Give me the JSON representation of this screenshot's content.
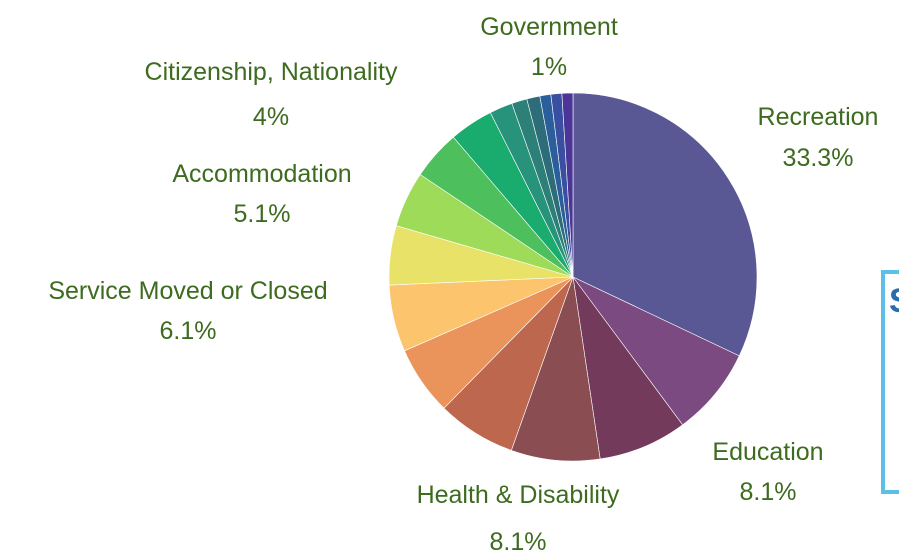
{
  "chart_data": {
    "type": "pie",
    "title": "",
    "slices": [
      {
        "label": "Recreation",
        "value": 33.3,
        "display": "33.3%",
        "color": "#5a5795"
      },
      {
        "label": "Education",
        "value": 8.1,
        "display": "8.1%",
        "color": "#7a4a80"
      },
      {
        "label": "",
        "value": 8.1,
        "display": "",
        "color": "#733a5c"
      },
      {
        "label": "Health & Disability",
        "value": 8.1,
        "display": "8.1%",
        "color": "#8a4d52"
      },
      {
        "label": "",
        "value": 7.2,
        "display": "",
        "color": "#bd674e"
      },
      {
        "label": "",
        "value": 6.3,
        "display": "",
        "color": "#ea945c"
      },
      {
        "label": "Service Moved or Closed",
        "value": 6.1,
        "display": "6.1%",
        "color": "#fbc46d"
      },
      {
        "label": "",
        "value": 5.4,
        "display": "",
        "color": "#e8e368"
      },
      {
        "label": "Accommodation",
        "value": 5.1,
        "display": "5.1%",
        "color": "#9edb59"
      },
      {
        "label": "",
        "value": 4.5,
        "display": "",
        "color": "#4dbf5c"
      },
      {
        "label": "Citizenship, Nationality",
        "value": 4.0,
        "display": "4%",
        "color": "#1aab6f"
      },
      {
        "label": "",
        "value": 2.1,
        "display": "",
        "color": "#27937a"
      },
      {
        "label": "",
        "value": 1.4,
        "display": "",
        "color": "#2c8078"
      },
      {
        "label": "",
        "value": 1.2,
        "display": "",
        "color": "#2d6d7a"
      },
      {
        "label": "",
        "value": 1.0,
        "display": "",
        "color": "#2a5f9c"
      },
      {
        "label": "",
        "value": 1.0,
        "display": "",
        "color": "#3a4fa1"
      },
      {
        "label": "Government",
        "value": 1.0,
        "display": "1%",
        "color": "#4b3596"
      }
    ],
    "label_color": "#3d6b1f",
    "start_angle_deg": 0,
    "direction": "clockwise"
  },
  "side_panel": {
    "glyph": "S",
    "border_color": "#5bc0e8"
  }
}
